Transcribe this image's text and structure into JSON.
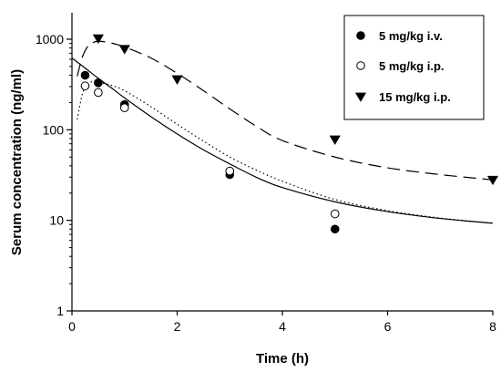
{
  "chart_data": {
    "type": "scatter",
    "xlabel": "Time (h)",
    "ylabel": "Serum concentration (ng/ml)",
    "xlim": [
      0,
      8
    ],
    "ylim": [
      1,
      1000
    ],
    "yscale": "log",
    "grid": false,
    "legend_position": "top-right",
    "x_ticks": [
      0,
      2,
      4,
      6,
      8
    ],
    "y_ticks": [
      1,
      10,
      100,
      1000
    ],
    "x_tick_labels": [
      "0",
      "2",
      "4",
      "6",
      "8"
    ],
    "y_tick_labels": [
      "1",
      "10",
      "100",
      "1000"
    ],
    "series": [
      {
        "name": "5 mg/kg i.v.",
        "marker": "filled-circle",
        "color": "#000000",
        "points": [
          [
            0.25,
            400
          ],
          [
            0.5,
            330
          ],
          [
            1,
            190
          ],
          [
            3,
            32
          ],
          [
            5,
            8
          ]
        ],
        "fit_line": "solid",
        "fit": [
          [
            0,
            620
          ],
          [
            0.25,
            480
          ],
          [
            0.5,
            370
          ],
          [
            0.75,
            290
          ],
          [
            1,
            225
          ],
          [
            1.5,
            140
          ],
          [
            2,
            90
          ],
          [
            2.5,
            60
          ],
          [
            3,
            42
          ],
          [
            3.5,
            30
          ],
          [
            4,
            23
          ],
          [
            5,
            16
          ],
          [
            6,
            12.5
          ],
          [
            7,
            10.5
          ],
          [
            8,
            9.3
          ]
        ]
      },
      {
        "name": "5 mg/kg i.p.",
        "marker": "open-circle",
        "color": "#000000",
        "points": [
          [
            0.25,
            305
          ],
          [
            0.5,
            258
          ],
          [
            1,
            175
          ],
          [
            3,
            35
          ],
          [
            5,
            11.8
          ]
        ],
        "fit_line": "dotted",
        "fit": [
          [
            0.1,
            130
          ],
          [
            0.2,
            250
          ],
          [
            0.3,
            320
          ],
          [
            0.4,
            340
          ],
          [
            0.5,
            335
          ],
          [
            0.75,
            310
          ],
          [
            1,
            270
          ],
          [
            1.5,
            180
          ],
          [
            2,
            115
          ],
          [
            2.5,
            75
          ],
          [
            3,
            50
          ],
          [
            3.5,
            36
          ],
          [
            4,
            27
          ],
          [
            5,
            17
          ],
          [
            6,
            12.8
          ],
          [
            7,
            10.6
          ],
          [
            8,
            9.3
          ]
        ]
      },
      {
        "name": "15 mg/kg i.p.",
        "marker": "filled-triangle-down",
        "color": "#000000",
        "points": [
          [
            0.5,
            1020
          ],
          [
            1,
            780
          ],
          [
            2,
            360
          ],
          [
            5,
            78
          ],
          [
            8,
            28
          ]
        ],
        "fit_line": "dashed",
        "fit": [
          [
            0.1,
            390
          ],
          [
            0.2,
            640
          ],
          [
            0.3,
            830
          ],
          [
            0.4,
            920
          ],
          [
            0.5,
            950
          ],
          [
            0.7,
            920
          ],
          [
            1,
            820
          ],
          [
            1.5,
            620
          ],
          [
            2,
            420
          ],
          [
            2.5,
            270
          ],
          [
            3,
            170
          ],
          [
            3.5,
            110
          ],
          [
            4,
            76
          ],
          [
            5,
            50
          ],
          [
            6,
            38
          ],
          [
            7,
            32
          ],
          [
            8,
            28
          ]
        ]
      }
    ]
  }
}
